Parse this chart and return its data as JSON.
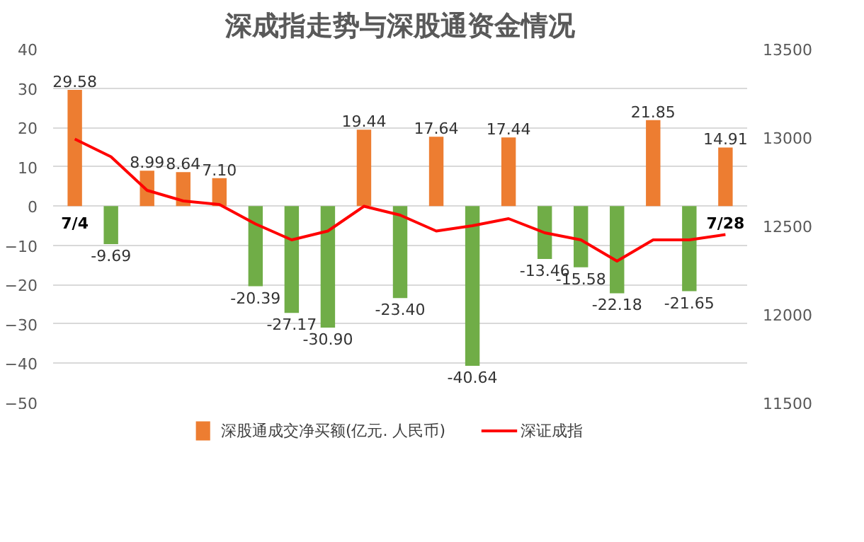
{
  "chart_data": {
    "type": "bar",
    "title": "深成指走势与深股通资金情况",
    "categories": [
      "7/4",
      null,
      null,
      null,
      null,
      null,
      null,
      null,
      null,
      null,
      null,
      null,
      null,
      null,
      null,
      null,
      null,
      null,
      "7/28"
    ],
    "series": [
      {
        "name": "深股通成交净买额(亿元. 人民币)",
        "value_labels": [
          "29.58",
          "-9.69",
          "8.99",
          "8.64",
          "7.10",
          "-20.39",
          "-27.17",
          "-30.90",
          "19.44",
          "-23.40",
          "17.64",
          "-40.64",
          "17.44",
          "-13.46",
          "-15.58",
          "-22.18",
          "21.85",
          "-21.65",
          "14.91"
        ],
        "colors": [
          "#ed7d31",
          "#70ad47",
          "#ed7d31",
          "#ed7d31",
          "#ed7d31",
          "#70ad47",
          "#70ad47",
          "#70ad47",
          "#ed7d31",
          "#70ad47",
          "#ed7d31",
          "#70ad47",
          "#ed7d31",
          "#70ad47",
          "#70ad47",
          "#70ad47",
          "#ed7d31",
          "#70ad47",
          "#ed7d31"
        ],
        "values": [
          29.58,
          -9.69,
          8.99,
          8.64,
          7.1,
          -20.39,
          -27.17,
          -30.9,
          19.44,
          -23.4,
          17.64,
          -40.64,
          17.44,
          -13.46,
          -15.58,
          -22.18,
          21.85,
          -21.65,
          14.91
        ]
      },
      {
        "name": "深证成指",
        "type": "line",
        "axis": "y2",
        "color": "#ff0000",
        "values": [
          12990,
          12890,
          12700,
          12640,
          12620,
          12510,
          12420,
          12470,
          12610,
          12560,
          12470,
          12500,
          12540,
          12460,
          12420,
          12300,
          12420,
          12420,
          12450
        ]
      }
    ],
    "ylim": [
      -50,
      40
    ],
    "yticks": [
      -50,
      -40,
      -30,
      -20,
      -10,
      0,
      10,
      20,
      30,
      40
    ],
    "y2lim": [
      11500,
      13500
    ],
    "y2ticks": [
      11500,
      12000,
      12500,
      13000,
      13500
    ],
    "grid": "y",
    "legend": "bottom"
  }
}
